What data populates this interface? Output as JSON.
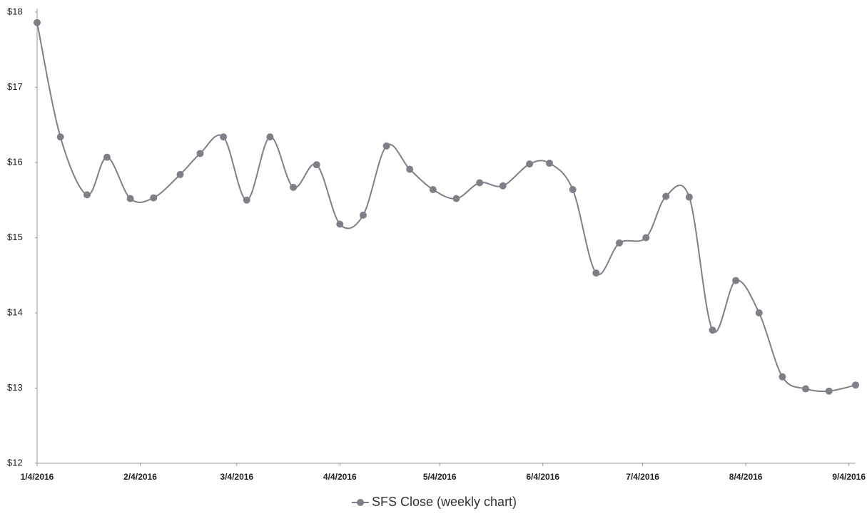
{
  "chart_data": {
    "type": "line",
    "x": [
      "2016-01-04",
      "2016-01-11",
      "2016-01-19",
      "2016-01-25",
      "2016-02-01",
      "2016-02-08",
      "2016-02-16",
      "2016-02-22",
      "2016-02-29",
      "2016-03-07",
      "2016-03-14",
      "2016-03-21",
      "2016-03-28",
      "2016-04-04",
      "2016-04-11",
      "2016-04-18",
      "2016-04-25",
      "2016-05-02",
      "2016-05-09",
      "2016-05-16",
      "2016-05-23",
      "2016-05-31",
      "2016-06-06",
      "2016-06-13",
      "2016-06-20",
      "2016-06-27",
      "2016-07-05",
      "2016-07-11",
      "2016-07-18",
      "2016-07-25",
      "2016-08-01",
      "2016-08-08",
      "2016-08-15",
      "2016-08-22",
      "2016-08-29",
      "2016-09-06"
    ],
    "series": [
      {
        "name": "SFS Close (weekly chart)",
        "color": "#7e8087",
        "values": [
          17.86,
          16.34,
          15.57,
          16.07,
          15.52,
          15.53,
          15.84,
          16.12,
          16.34,
          15.5,
          16.34,
          15.67,
          15.97,
          15.18,
          15.3,
          16.22,
          15.91,
          15.64,
          15.52,
          15.73,
          15.69,
          15.98,
          15.99,
          15.64,
          14.53,
          14.93,
          15.0,
          15.55,
          15.54,
          13.77,
          14.43,
          14.0,
          13.15,
          12.99,
          12.96,
          13.04
        ]
      }
    ],
    "xlim": [
      "2016-01-04",
      "2016-09-06"
    ],
    "xticks": [
      {
        "value": "2016-01-04",
        "label": "1/4/2016"
      },
      {
        "value": "2016-02-04",
        "label": "2/4/2016"
      },
      {
        "value": "2016-03-04",
        "label": "3/4/2016"
      },
      {
        "value": "2016-04-04",
        "label": "4/4/2016"
      },
      {
        "value": "2016-05-04",
        "label": "5/4/2016"
      },
      {
        "value": "2016-06-04",
        "label": "6/4/2016"
      },
      {
        "value": "2016-07-04",
        "label": "7/4/2016"
      },
      {
        "value": "2016-08-04",
        "label": "8/4/2016"
      },
      {
        "value": "2016-09-04",
        "label": "9/4/2016"
      }
    ],
    "ylim": [
      12,
      18
    ],
    "yticks": [
      {
        "value": 12,
        "label": "$12"
      },
      {
        "value": 13,
        "label": "$13"
      },
      {
        "value": 14,
        "label": "$14"
      },
      {
        "value": 15,
        "label": "$15"
      },
      {
        "value": 16,
        "label": "$16"
      },
      {
        "value": 17,
        "label": "$17"
      },
      {
        "value": 18,
        "label": "$18"
      }
    ],
    "smooth": true,
    "markers": true,
    "grid": false,
    "legend": "bottom"
  }
}
